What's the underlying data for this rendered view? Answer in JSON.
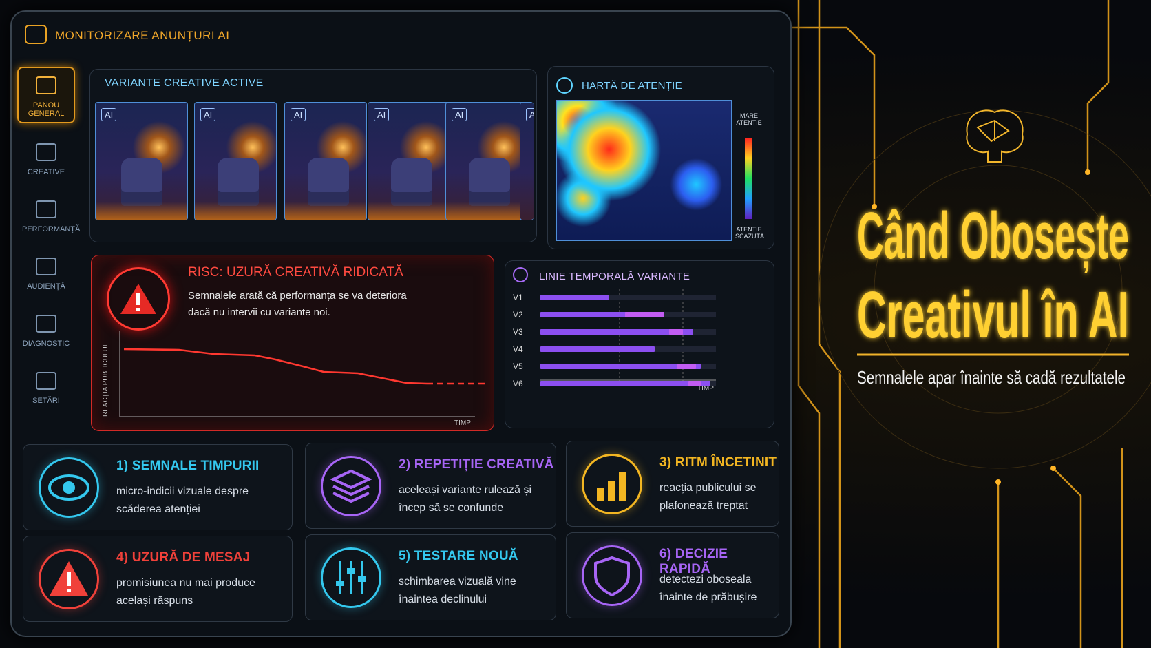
{
  "header": {
    "title": "MONITORIZARE ANUNȚURI AI"
  },
  "sidebar": [
    {
      "label": "PANOU GENERAL"
    },
    {
      "label": "CREATIVE"
    },
    {
      "label": "PERFORMANȚĂ"
    },
    {
      "label": "AUDIENȚĂ"
    },
    {
      "label": "DIAGNOSTIC"
    },
    {
      "label": "SETĂRI"
    }
  ],
  "variants": {
    "title": "VARIANTE CREATIVE ACTIVE",
    "badges": [
      "AI",
      "AI",
      "AI",
      "AI",
      "AI",
      "AI"
    ]
  },
  "heatmap": {
    "title": "HARTĂ DE ATENȚIE",
    "high": "MARE ATENȚIE",
    "low": "ATENȚIE SCĂZUTĂ"
  },
  "risk": {
    "title": "RISC: UZURĂ CREATIVĂ RIDICATĂ",
    "text": "Semnalele arată că performanța se va deteriora dacă nu intervii cu variante noi.",
    "ylabel": "REACȚIA PUBLICULUI",
    "xlabel": "TIMP"
  },
  "timeline": {
    "title": "LINIE TEMPORALĂ VARIANTE",
    "rows": [
      "V1",
      "V2",
      "V3",
      "V4",
      "V5",
      "V6"
    ],
    "xlabel": "TIMP"
  },
  "cards": [
    {
      "title": "1) SEMNALE TIMPURII",
      "text": "micro-indicii vizuale despre scăderea atenției"
    },
    {
      "title": "2) REPETIȚIE CREATIVĂ",
      "text": "aceleași variante rulează și încep să se confunde"
    },
    {
      "title": "3) RITM ÎNCETINIT",
      "text": "reacția publicului se plafonează treptat"
    },
    {
      "title": "4) UZURĂ DE MESAJ",
      "text": "promisiunea nu mai produce același răspuns"
    },
    {
      "title": "5) TESTARE NOUĂ",
      "text": "schimbarea vizuală vine înaintea declinului"
    },
    {
      "title": "6) DECIZIE RAPIDĂ",
      "text": "detectezi oboseala înainte de prăbușire"
    }
  ],
  "hero": {
    "line1": "Când Obosește",
    "line2": "Creativul în AI",
    "subtitle": "Semnalele apar înainte să cadă rezultatele"
  }
}
